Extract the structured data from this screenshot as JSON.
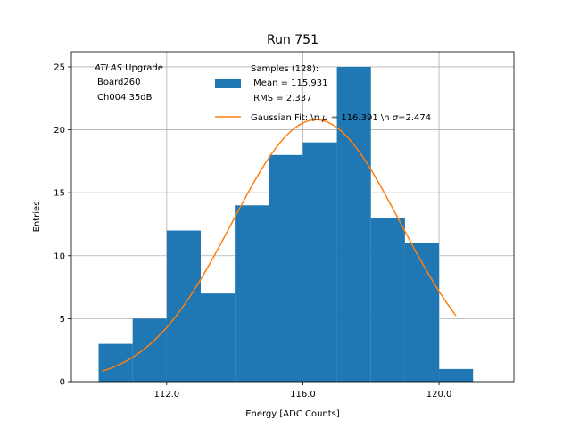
{
  "chart_data": {
    "type": "bar",
    "title": "Run 751",
    "xlabel": "Energy [ADC Counts]",
    "ylabel": "Entries",
    "xlim": [
      109.2,
      122.2
    ],
    "ylim": [
      0,
      26.2
    ],
    "xticks": [
      112.0,
      116.0,
      120.0
    ],
    "xtick_labels": [
      "112.0",
      "116.0",
      "120.0"
    ],
    "yticks": [
      0,
      5,
      10,
      15,
      20,
      25
    ],
    "ytick_labels": [
      "0",
      "5",
      "10",
      "15",
      "20",
      "25"
    ],
    "grid": true,
    "bin_edges": [
      110,
      111,
      112,
      113,
      114,
      115,
      116,
      117,
      118,
      119,
      120,
      121
    ],
    "values": [
      3,
      5,
      12,
      7,
      14,
      18,
      19,
      25,
      13,
      11,
      1
    ],
    "bar_color": "#1f77b4",
    "fit": {
      "mu": 116.391,
      "sigma": 2.474,
      "amplitude": 20.8,
      "x_range": [
        110.1,
        120.5
      ],
      "color": "#ff7f0e"
    },
    "annotation": {
      "italic": "ATLAS",
      "rest": " Upgrade",
      "line2": "Board260",
      "line3": "Ch004 35dB"
    },
    "legend": {
      "placement": "top-right",
      "samples_title": "Samples (128):",
      "samples_mean": " Mean = 115.931",
      "samples_rms": " RMS = 2.337",
      "fit_prefix": "Gaussian Fit: \\n ",
      "fit_mu_symbol": "μ",
      "fit_mid": " = 116.391 \\n ",
      "fit_sigma_symbol": "σ",
      "fit_suffix": "=2.474"
    }
  }
}
